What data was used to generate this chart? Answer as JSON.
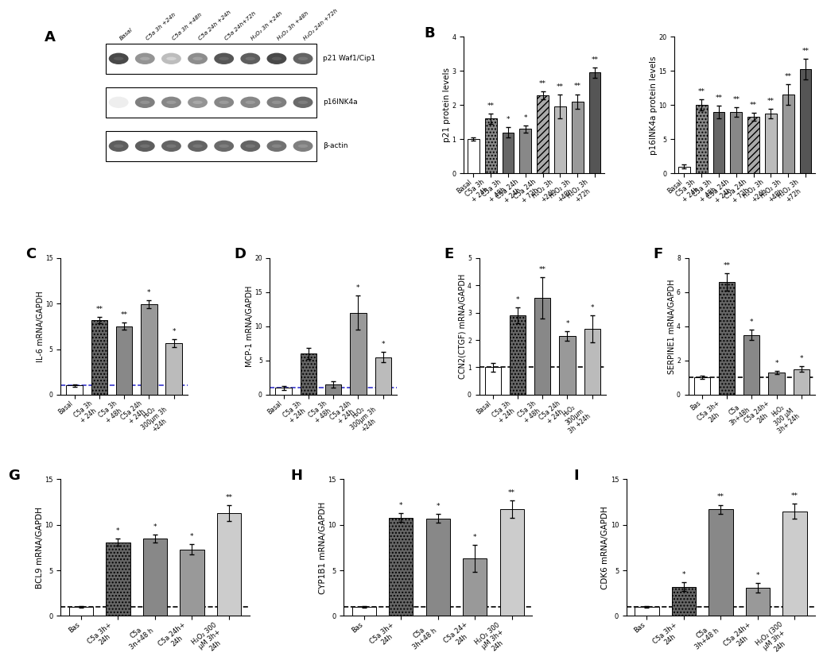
{
  "panel_A": {
    "lane_labels": [
      "Basal",
      "C5a 3h +24h",
      "C5a 3h +48h",
      "C5a 24h +24h",
      "C5a 24h+72h",
      "H₂O₂ 3h +24h",
      "H₂O₂ 3h +48h",
      "H₂O₂ 24h +72h"
    ],
    "bands": {
      "p21": [
        0.88,
        0.52,
        0.32,
        0.55,
        0.82,
        0.78,
        0.88,
        0.75
      ],
      "p16": [
        0.08,
        0.62,
        0.58,
        0.52,
        0.58,
        0.58,
        0.62,
        0.72
      ],
      "actin": [
        0.78,
        0.78,
        0.75,
        0.75,
        0.72,
        0.75,
        0.68,
        0.62
      ]
    },
    "labels_text": [
      "p21 Waf1/Cip1",
      "p16INK4a",
      "β-actin"
    ]
  },
  "panel_B_p21": {
    "categories": [
      "Basal",
      "C5a 3h\n+ 24h",
      "C5a 3h\n+ 48h",
      "C5a 24h\n+ 24h",
      "C5a 24h\n+ 72h",
      "H₂O₂ 3h\n+24h",
      "H₂O₂ 3h\n+48h",
      "H₂O₂ 3h\n+72h"
    ],
    "values": [
      1.0,
      1.6,
      1.2,
      1.3,
      2.28,
      1.95,
      2.1,
      2.95
    ],
    "errors": [
      0.05,
      0.15,
      0.15,
      0.1,
      0.12,
      0.35,
      0.22,
      0.15
    ],
    "sig": [
      "",
      "**",
      "*",
      "*",
      "**",
      "**",
      "**",
      "**"
    ],
    "ylabel": "p21 protein levels",
    "ylim": [
      0,
      4
    ],
    "yticks": [
      0,
      1,
      2,
      3,
      4
    ],
    "patterns": [
      {
        "fc": "#ffffff",
        "hatch": "",
        "ec": "#000000"
      },
      {
        "fc": "#888888",
        "hatch": "....",
        "ec": "#000000"
      },
      {
        "fc": "#666666",
        "hatch": "",
        "ec": "#000000"
      },
      {
        "fc": "#888888",
        "hatch": "",
        "ec": "#000000"
      },
      {
        "fc": "#aaaaaa",
        "hatch": "////",
        "ec": "#000000"
      },
      {
        "fc": "#bbbbbb",
        "hatch": "====",
        "ec": "#000000"
      },
      {
        "fc": "#999999",
        "hatch": "====",
        "ec": "#000000"
      },
      {
        "fc": "#555555",
        "hatch": "",
        "ec": "#000000"
      }
    ]
  },
  "panel_B_p16": {
    "categories": [
      "Basal",
      "C5a 3h\n+ 24h",
      "C5a 3h\n+ 48h",
      "C5a 24h\n+ 24h",
      "C5a 24h\n+ 72h",
      "H₂O₂ 3h\n+24h",
      "H₂O₂ 3h\n+48h",
      "H₂O₂ 3h\n+72h"
    ],
    "values": [
      1.0,
      10.0,
      9.0,
      9.0,
      8.3,
      8.7,
      11.5,
      15.3
    ],
    "errors": [
      0.3,
      0.8,
      0.9,
      0.7,
      0.6,
      0.7,
      1.5,
      1.5
    ],
    "sig": [
      "",
      "**",
      "**",
      "**",
      "**",
      "**",
      "**",
      "**"
    ],
    "ylabel": "p16INK4a protein levels",
    "ylim": [
      0,
      20
    ],
    "yticks": [
      0,
      5,
      10,
      15,
      20
    ],
    "patterns": [
      {
        "fc": "#ffffff",
        "hatch": "",
        "ec": "#000000"
      },
      {
        "fc": "#888888",
        "hatch": "....",
        "ec": "#000000"
      },
      {
        "fc": "#666666",
        "hatch": "",
        "ec": "#000000"
      },
      {
        "fc": "#888888",
        "hatch": "",
        "ec": "#000000"
      },
      {
        "fc": "#aaaaaa",
        "hatch": "////",
        "ec": "#000000"
      },
      {
        "fc": "#bbbbbb",
        "hatch": "====",
        "ec": "#000000"
      },
      {
        "fc": "#999999",
        "hatch": "====",
        "ec": "#000000"
      },
      {
        "fc": "#555555",
        "hatch": "",
        "ec": "#000000"
      }
    ]
  },
  "panel_C": {
    "categories": [
      "Basal",
      "C5a 3h\n+ 24h",
      "C5a 3h\n+ 48h",
      "C5a 24h\n+ 24h",
      "H₂O₂\n300μm 3h\n+24h"
    ],
    "values": [
      1.0,
      8.2,
      7.5,
      9.9,
      5.65
    ],
    "errors": [
      0.12,
      0.35,
      0.4,
      0.45,
      0.4
    ],
    "sig": [
      "",
      "**",
      "**",
      "*",
      "*"
    ],
    "ylabel": "IL-6 mRNA/GAPDH",
    "ylim": [
      0,
      15
    ],
    "yticks": [
      0,
      5,
      10,
      15
    ],
    "dashed_line": 1.0,
    "dashed_color": "#3333cc",
    "patterns": [
      {
        "fc": "#ffffff",
        "hatch": "",
        "ec": "#000000"
      },
      {
        "fc": "#666666",
        "hatch": "....",
        "ec": "#000000"
      },
      {
        "fc": "#888888",
        "hatch": "",
        "ec": "#000000"
      },
      {
        "fc": "#999999",
        "hatch": "",
        "ec": "#000000"
      },
      {
        "fc": "#bbbbbb",
        "hatch": "====",
        "ec": "#000000"
      }
    ]
  },
  "panel_D": {
    "categories": [
      "Basal",
      "C5a 3h\n+ 24h",
      "C5a 3h\n+ 48h",
      "C5a 24h\n+ 24h",
      "H₂O₂\n300μm 3h\n+24h"
    ],
    "values": [
      1.0,
      6.0,
      1.5,
      12.0,
      5.5
    ],
    "errors": [
      0.3,
      0.8,
      0.5,
      2.5,
      0.8
    ],
    "sig": [
      "",
      "",
      "",
      "*",
      "*"
    ],
    "ylabel": "MCP-1 mRNA/GAPDH",
    "ylim": [
      0,
      20
    ],
    "yticks": [
      0,
      5,
      10,
      15,
      20
    ],
    "dashed_line": 1.0,
    "dashed_color": "#3333cc",
    "patterns": [
      {
        "fc": "#ffffff",
        "hatch": "",
        "ec": "#000000"
      },
      {
        "fc": "#666666",
        "hatch": "....",
        "ec": "#000000"
      },
      {
        "fc": "#888888",
        "hatch": "",
        "ec": "#000000"
      },
      {
        "fc": "#999999",
        "hatch": "",
        "ec": "#000000"
      },
      {
        "fc": "#bbbbbb",
        "hatch": "====",
        "ec": "#000000"
      }
    ]
  },
  "panel_E": {
    "categories": [
      "Basal",
      "C5a 3h\n+ 24h",
      "C5a 3h\n+ 48h",
      "C5a 24h\n+ 24h",
      "H₂O₂\n300μm\n3h +24h"
    ],
    "values": [
      1.0,
      2.9,
      3.55,
      2.15,
      2.4
    ],
    "errors": [
      0.15,
      0.3,
      0.75,
      0.18,
      0.5
    ],
    "sig": [
      "",
      "*",
      "**",
      "*",
      "*"
    ],
    "ylabel": "CCN2(CTGF) mRNA/GAPDH",
    "ylim": [
      0,
      5
    ],
    "yticks": [
      0,
      1,
      2,
      3,
      4,
      5
    ],
    "dashed_line": 1.0,
    "dashed_color": "#000000",
    "patterns": [
      {
        "fc": "#ffffff",
        "hatch": "",
        "ec": "#000000"
      },
      {
        "fc": "#666666",
        "hatch": "....",
        "ec": "#000000"
      },
      {
        "fc": "#888888",
        "hatch": "",
        "ec": "#000000"
      },
      {
        "fc": "#999999",
        "hatch": "",
        "ec": "#000000"
      },
      {
        "fc": "#bbbbbb",
        "hatch": "====",
        "ec": "#000000"
      }
    ]
  },
  "panel_F": {
    "categories": [
      "Bas",
      "C5a 3h+\n24h",
      "C5a\n3h+48h",
      "C5a 24h+\n24h",
      "H₂O₂\n300 μM\n3h+ 24h"
    ],
    "values": [
      1.0,
      6.6,
      3.5,
      1.3,
      1.5
    ],
    "errors": [
      0.1,
      0.5,
      0.3,
      0.1,
      0.15
    ],
    "sig": [
      "",
      "**",
      "*",
      "*",
      "*"
    ],
    "ylabel": "SERPINE1 mRNA/GAPDH",
    "ylim": [
      0,
      8
    ],
    "yticks": [
      0,
      2,
      4,
      6,
      8
    ],
    "dashed_line": 1.0,
    "dashed_color": "#000000",
    "patterns": [
      {
        "fc": "#ffffff",
        "hatch": "",
        "ec": "#000000"
      },
      {
        "fc": "#666666",
        "hatch": "....",
        "ec": "#000000"
      },
      {
        "fc": "#888888",
        "hatch": "",
        "ec": "#000000"
      },
      {
        "fc": "#999999",
        "hatch": "",
        "ec": "#000000"
      },
      {
        "fc": "#bbbbbb",
        "hatch": "====",
        "ec": "#000000"
      }
    ]
  },
  "panel_G": {
    "categories": [
      "Bas",
      "C5a 3h+\n24h",
      "C5a\n3n+48 h",
      "C5a 24h+\n24h",
      "H₂O₂ 300\nμM 3h+\n24h"
    ],
    "values": [
      1.0,
      8.1,
      8.5,
      7.3,
      11.3
    ],
    "errors": [
      0.1,
      0.4,
      0.4,
      0.55,
      0.85
    ],
    "sig": [
      "",
      "*",
      "*",
      "*",
      "**"
    ],
    "ylabel": "BCL9 mRNA/GAPDH",
    "ylim": [
      0,
      15
    ],
    "yticks": [
      0,
      5,
      10,
      15
    ],
    "dashed_line": 1.0,
    "dashed_color": "#000000",
    "patterns": [
      {
        "fc": "#ffffff",
        "hatch": "",
        "ec": "#000000"
      },
      {
        "fc": "#666666",
        "hatch": "....",
        "ec": "#000000"
      },
      {
        "fc": "#888888",
        "hatch": "",
        "ec": "#000000"
      },
      {
        "fc": "#999999",
        "hatch": "",
        "ec": "#000000"
      },
      {
        "fc": "#cccccc",
        "hatch": "====",
        "ec": "#000000"
      }
    ]
  },
  "panel_H": {
    "categories": [
      "Bas",
      "C5a 3h+\n24h",
      "C5a\n3h+48 h",
      "C5a 24+\n24h",
      "H₂O₂ 300\nμM 3h+\n24h"
    ],
    "values": [
      1.0,
      10.8,
      10.7,
      6.3,
      11.7
    ],
    "errors": [
      0.1,
      0.5,
      0.5,
      1.5,
      0.95
    ],
    "sig": [
      "",
      "*",
      "*",
      "*",
      "**"
    ],
    "ylabel": "CYP1B1 mRNA/GAPDH",
    "ylim": [
      0,
      15
    ],
    "yticks": [
      0,
      5,
      10,
      15
    ],
    "dashed_line": 1.0,
    "dashed_color": "#000000",
    "patterns": [
      {
        "fc": "#ffffff",
        "hatch": "",
        "ec": "#000000"
      },
      {
        "fc": "#666666",
        "hatch": "....",
        "ec": "#000000"
      },
      {
        "fc": "#888888",
        "hatch": "",
        "ec": "#000000"
      },
      {
        "fc": "#999999",
        "hatch": "",
        "ec": "#000000"
      },
      {
        "fc": "#cccccc",
        "hatch": "====",
        "ec": "#000000"
      }
    ]
  },
  "panel_I": {
    "categories": [
      "Bas",
      "C5a 3h+\n24h",
      "C5a\n3h+48 h",
      "C5a 24h+\n24h",
      "H₂O₂ (300\nμM 3h+\n24h"
    ],
    "values": [
      1.0,
      3.2,
      11.7,
      3.1,
      11.5
    ],
    "errors": [
      0.1,
      0.5,
      0.5,
      0.5,
      0.85
    ],
    "sig": [
      "",
      "*",
      "**",
      "*",
      "**"
    ],
    "ylabel": "CDK6 mRNA/GAPDH",
    "ylim": [
      0,
      15
    ],
    "yticks": [
      0,
      5,
      10,
      15
    ],
    "dashed_line": 1.0,
    "dashed_color": "#000000",
    "patterns": [
      {
        "fc": "#ffffff",
        "hatch": "",
        "ec": "#000000"
      },
      {
        "fc": "#666666",
        "hatch": "....",
        "ec": "#000000"
      },
      {
        "fc": "#888888",
        "hatch": "",
        "ec": "#000000"
      },
      {
        "fc": "#999999",
        "hatch": "",
        "ec": "#000000"
      },
      {
        "fc": "#cccccc",
        "hatch": "====",
        "ec": "#000000"
      }
    ]
  }
}
